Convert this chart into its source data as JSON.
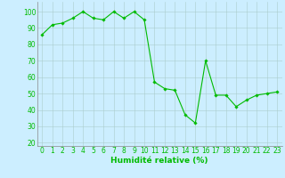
{
  "x": [
    0,
    1,
    2,
    3,
    4,
    5,
    6,
    7,
    8,
    9,
    10,
    11,
    12,
    13,
    14,
    15,
    16,
    17,
    18,
    19,
    20,
    21,
    22,
    23
  ],
  "y": [
    86,
    92,
    93,
    96,
    100,
    96,
    95,
    100,
    96,
    100,
    95,
    57,
    53,
    52,
    37,
    32,
    70,
    49,
    49,
    42,
    46,
    49,
    50,
    51
  ],
  "line_color": "#00bb00",
  "marker": "D",
  "marker_size": 1.8,
  "line_width": 0.8,
  "bg_color": "#cceeff",
  "grid_color": "#aacccc",
  "grid_lw": 0.4,
  "xlabel": "Humidité relative (%)",
  "xlabel_color": "#00bb00",
  "xlabel_fontsize": 6.5,
  "tick_fontsize": 5.5,
  "tick_color": "#00bb00",
  "ylim": [
    18,
    106
  ],
  "yticks": [
    20,
    30,
    40,
    50,
    60,
    70,
    80,
    90,
    100
  ],
  "xlim": [
    -0.5,
    23.5
  ],
  "spine_color": "#888888"
}
